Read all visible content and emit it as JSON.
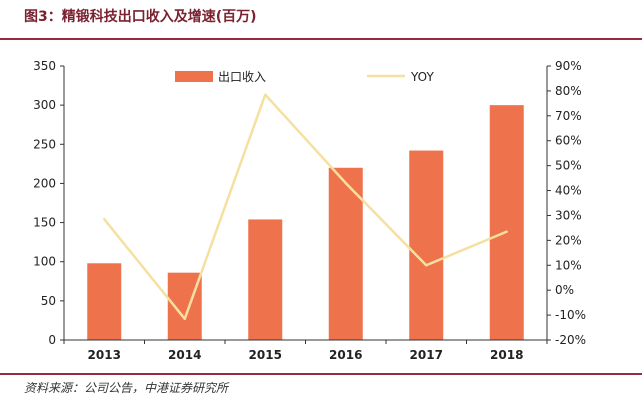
{
  "figure": {
    "title": "图3：精锻科技出口收入及增速(百万)",
    "source": "资料来源：公司公告，中港证券研究所"
  },
  "colors": {
    "bar": "#ee734d",
    "line": "#f6e0a0",
    "title": "#7a2230",
    "rule": "#9b2a3a",
    "axis": "#333333"
  },
  "chart_data": {
    "type": "bar",
    "categories": [
      "2013",
      "2014",
      "2015",
      "2016",
      "2017",
      "2018"
    ],
    "series": [
      {
        "name": "出口收入",
        "type": "bar",
        "axis": "left",
        "values": [
          98,
          86,
          154,
          220,
          242,
          300
        ]
      },
      {
        "name": "YOY",
        "type": "line",
        "axis": "right",
        "values": [
          28.5,
          -11.5,
          78.5,
          43,
          10,
          23.5
        ]
      }
    ],
    "ylim": [
      0,
      350
    ],
    "yticks": [
      "0",
      "50",
      "100",
      "150",
      "200",
      "250",
      "300",
      "350"
    ],
    "y2lim": [
      -20,
      90
    ],
    "y2ticks": [
      "-20%",
      "-10%",
      "0%",
      "10%",
      "20%",
      "30%",
      "40%",
      "50%",
      "60%",
      "70%",
      "80%",
      "90%"
    ],
    "legend_position": "top-center",
    "grid": false
  }
}
